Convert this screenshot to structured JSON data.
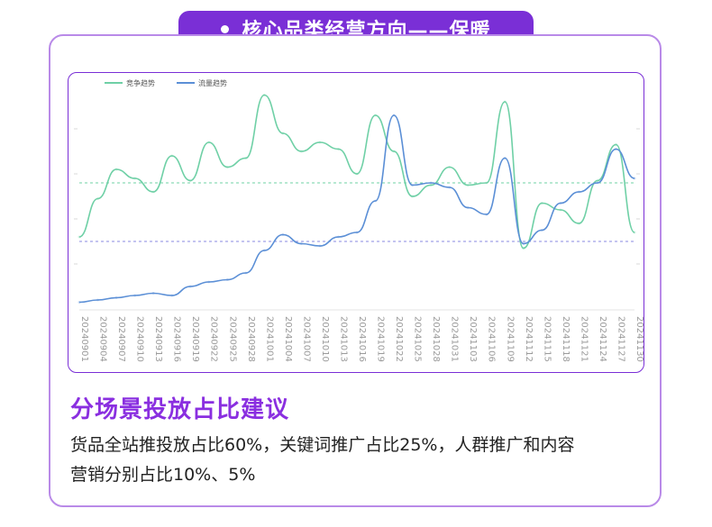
{
  "header": {
    "title": "核心品类经营方向——保暖"
  },
  "section": {
    "title": "分场景投放占比建议",
    "text_line1": "货品全站推投放占比60%，关键词推广占比25%，人群推广和内容",
    "text_line2": "营销分别占比10%、5%"
  },
  "colors": {
    "accent": "#7a2fd6",
    "competition": "#6fd0a6",
    "traffic": "#5b8fd6"
  },
  "chart_data": {
    "type": "line",
    "legend_position": "top-left",
    "x": [
      "20240901",
      "20240904",
      "20240907",
      "20240910",
      "20240913",
      "20240916",
      "20240919",
      "20240922",
      "20240925",
      "20240928",
      "20241001",
      "20241004",
      "20241007",
      "20241010",
      "20241013",
      "20241016",
      "20241019",
      "20241022",
      "20241025",
      "20241028",
      "20241031",
      "20241103",
      "20241106",
      "20241109",
      "20241112",
      "20241115",
      "20241118",
      "20241121",
      "20241124",
      "20241127",
      "20241130"
    ],
    "series": [
      {
        "name": "竞争趋势",
        "color": "#6fd0a6",
        "values": [
          32,
          49,
          62,
          58,
          52,
          68,
          57,
          74,
          63,
          67,
          95,
          78,
          70,
          74,
          71,
          60,
          86,
          70,
          50,
          55,
          63,
          55,
          56,
          92,
          27,
          47,
          44,
          38,
          57,
          73,
          34
        ]
      },
      {
        "name": "流量趋势",
        "color": "#5b8fd6",
        "values": [
          3,
          4,
          5,
          6,
          7,
          6,
          10,
          12,
          13,
          16,
          26,
          33,
          29,
          28,
          32,
          34,
          48,
          86,
          55,
          56,
          54,
          45,
          42,
          67,
          29,
          35,
          47,
          52,
          56,
          71,
          58
        ]
      }
    ],
    "reference_lines": [
      {
        "value": 56,
        "color": "#6fd0a6"
      },
      {
        "value": 30,
        "color": "#8a8ae0"
      }
    ],
    "ylim": [
      0,
      100
    ]
  }
}
